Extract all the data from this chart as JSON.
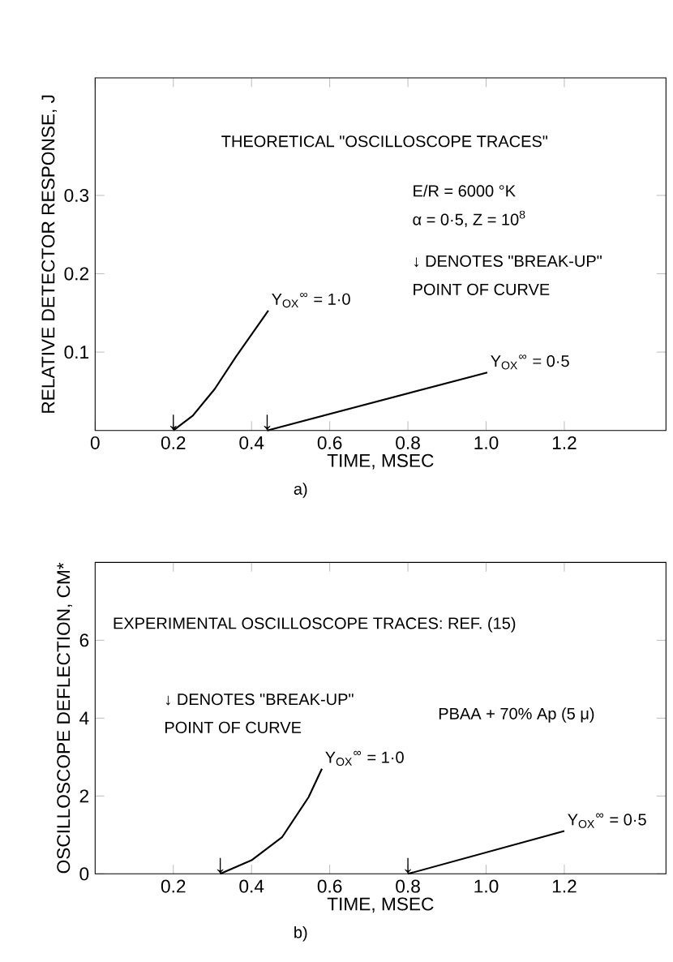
{
  "chart_data": [
    {
      "type": "line",
      "subtitle": "a)",
      "xlabel": "TIME, MSEC",
      "ylabel": "RELATIVE DETECTOR RESPONSE, J",
      "marker": "none",
      "line_style": "solid",
      "legend": false,
      "xlim": [
        0,
        1.46
      ],
      "ylim": [
        0,
        0.45
      ],
      "xticks": [
        0,
        0.2,
        0.4,
        0.6,
        0.8,
        {
          "value": 1,
          "label": "1.0"
        },
        1.2
      ],
      "yticks": [
        0.1,
        0.2,
        0.3
      ],
      "series": [
        {
          "name": "Y$_{OX}$$^{∞}$ = 1·0",
          "color": "#000000",
          "x": [
            0.2,
            0.25,
            0.306,
            0.36,
            0.443
          ],
          "values": [
            0,
            0.019,
            0.053,
            0.094,
            0.153
          ]
        },
        {
          "name": "Y$_{OX}$$^{∞}$ = 0·5",
          "color": "#000000",
          "x": [
            0.44,
            1.003
          ],
          "values": [
            0,
            0.074
          ]
        }
      ],
      "annotations": [
        "THEORETICAL \"OSCILLOSCOPE TRACES\"",
        "E/R = 6000 °K",
        "α = 0·5, Z = 10$^{8}$",
        "↓ DENOTES \"BREAK-UP\"",
        "POINT OF CURVE",
        {
          "text": "↓",
          "x": 0.2,
          "y": 0
        },
        {
          "text": "↓",
          "x": 0.44,
          "y": 0
        }
      ]
    },
    {
      "type": "line",
      "subtitle": "b)",
      "xlabel": "TIME, MSEC",
      "ylabel": "OSCILLOSCOPE DEFLECTION, CM*",
      "marker": "none",
      "line_style": "solid",
      "legend": false,
      "xlim": [
        0,
        1.46
      ],
      "ylim": [
        0,
        8
      ],
      "xticks": [
        0.2,
        0.4,
        0.6,
        0.8,
        {
          "value": 1,
          "label": "1.0"
        },
        1.2
      ],
      "yticks": [
        0,
        2,
        4,
        6
      ],
      "series": [
        {
          "name": "Y$_{OX}$$^{∞}$ = 1·0",
          "color": "#000000",
          "x": [
            0.32,
            0.4,
            0.478,
            0.546,
            0.58
          ],
          "values": [
            0,
            0.35,
            0.94,
            1.97,
            2.7
          ]
        },
        {
          "name": "Y$_{OX}$$^{∞}$ = 0·5",
          "color": "#000000",
          "x": [
            0.8,
            1.2
          ],
          "values": [
            0,
            1.1
          ]
        }
      ],
      "annotations": [
        "EXPERIMENTAL OSCILLOSCOPE TRACES: REF. (15)",
        "↓ DENOTES \"BREAK-UP\"",
        "POINT OF CURVE",
        "PBAA + 70% Ap (5 μ)",
        {
          "text": "↓",
          "x": 0.32,
          "y": 0
        },
        {
          "text": "↓",
          "x": 0.8,
          "y": 0
        }
      ]
    }
  ]
}
